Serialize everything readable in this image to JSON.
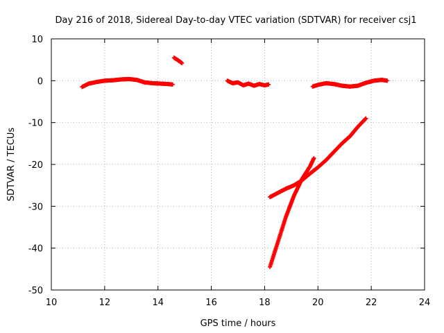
{
  "chart_data": {
    "type": "scatter",
    "title": "Day 216 of 2018, Sidereal Day-to-day VTEC variation (SDTVAR) for receiver csj1",
    "xlabel": "GPS time / hours",
    "ylabel": "SDTVAR / TECUs",
    "xlim": [
      10,
      24
    ],
    "ylim": [
      -50,
      10
    ],
    "x_ticks": [
      10,
      12,
      14,
      16,
      18,
      20,
      22,
      24
    ],
    "y_ticks": [
      10,
      0,
      -10,
      -20,
      -30,
      -40,
      -50
    ],
    "x_tick_labels": [
      "10",
      "12",
      "14",
      "16",
      "18",
      "20",
      "22",
      "24"
    ],
    "y_tick_labels": [
      "10",
      "0",
      "-10",
      "-20",
      "-30",
      "-40",
      "-50"
    ],
    "grid": true,
    "marker": "plus",
    "series_color": "#ff0000",
    "segments": [
      {
        "x": [
          11.15,
          11.4,
          11.7,
          12.0,
          12.3,
          12.6,
          12.9,
          13.2,
          13.5,
          13.8,
          14.1,
          14.4,
          14.55
        ],
        "y": [
          -1.5,
          -0.7,
          -0.3,
          0.0,
          0.1,
          0.3,
          0.4,
          0.2,
          -0.4,
          -0.6,
          -0.7,
          -0.8,
          -0.9
        ]
      },
      {
        "x": [
          14.6,
          14.75,
          14.9
        ],
        "y": [
          5.5,
          4.9,
          4.2
        ]
      },
      {
        "x": [
          16.6,
          16.8,
          17.0,
          17.2,
          17.4,
          17.6,
          17.8,
          18.0,
          18.15
        ],
        "y": [
          0.0,
          -0.6,
          -0.4,
          -1.1,
          -0.7,
          -1.2,
          -0.8,
          -1.1,
          -0.9
        ]
      },
      {
        "x": [
          19.8,
          20.0,
          20.3,
          20.6,
          20.9,
          21.2,
          21.5,
          21.8,
          22.1,
          22.4,
          22.6
        ],
        "y": [
          -1.4,
          -1.0,
          -0.6,
          -0.8,
          -1.2,
          -1.4,
          -1.2,
          -0.5,
          0.0,
          0.2,
          0.0
        ]
      },
      {
        "x": [
          18.2,
          18.5,
          18.8,
          19.1,
          19.4,
          19.7,
          20.0,
          20.3,
          20.6,
          20.9,
          21.2,
          21.5,
          21.8
        ],
        "y": [
          -27.8,
          -26.8,
          -25.8,
          -25.0,
          -23.8,
          -22.2,
          -20.7,
          -19.0,
          -17.0,
          -15.0,
          -13.3,
          -11.0,
          -9.0
        ]
      },
      {
        "x": [
          18.2,
          18.5,
          18.8,
          19.1,
          19.4,
          19.7,
          19.85
        ],
        "y": [
          -44.5,
          -38.5,
          -32.5,
          -27.5,
          -23.5,
          -20.5,
          -18.5
        ]
      }
    ]
  }
}
